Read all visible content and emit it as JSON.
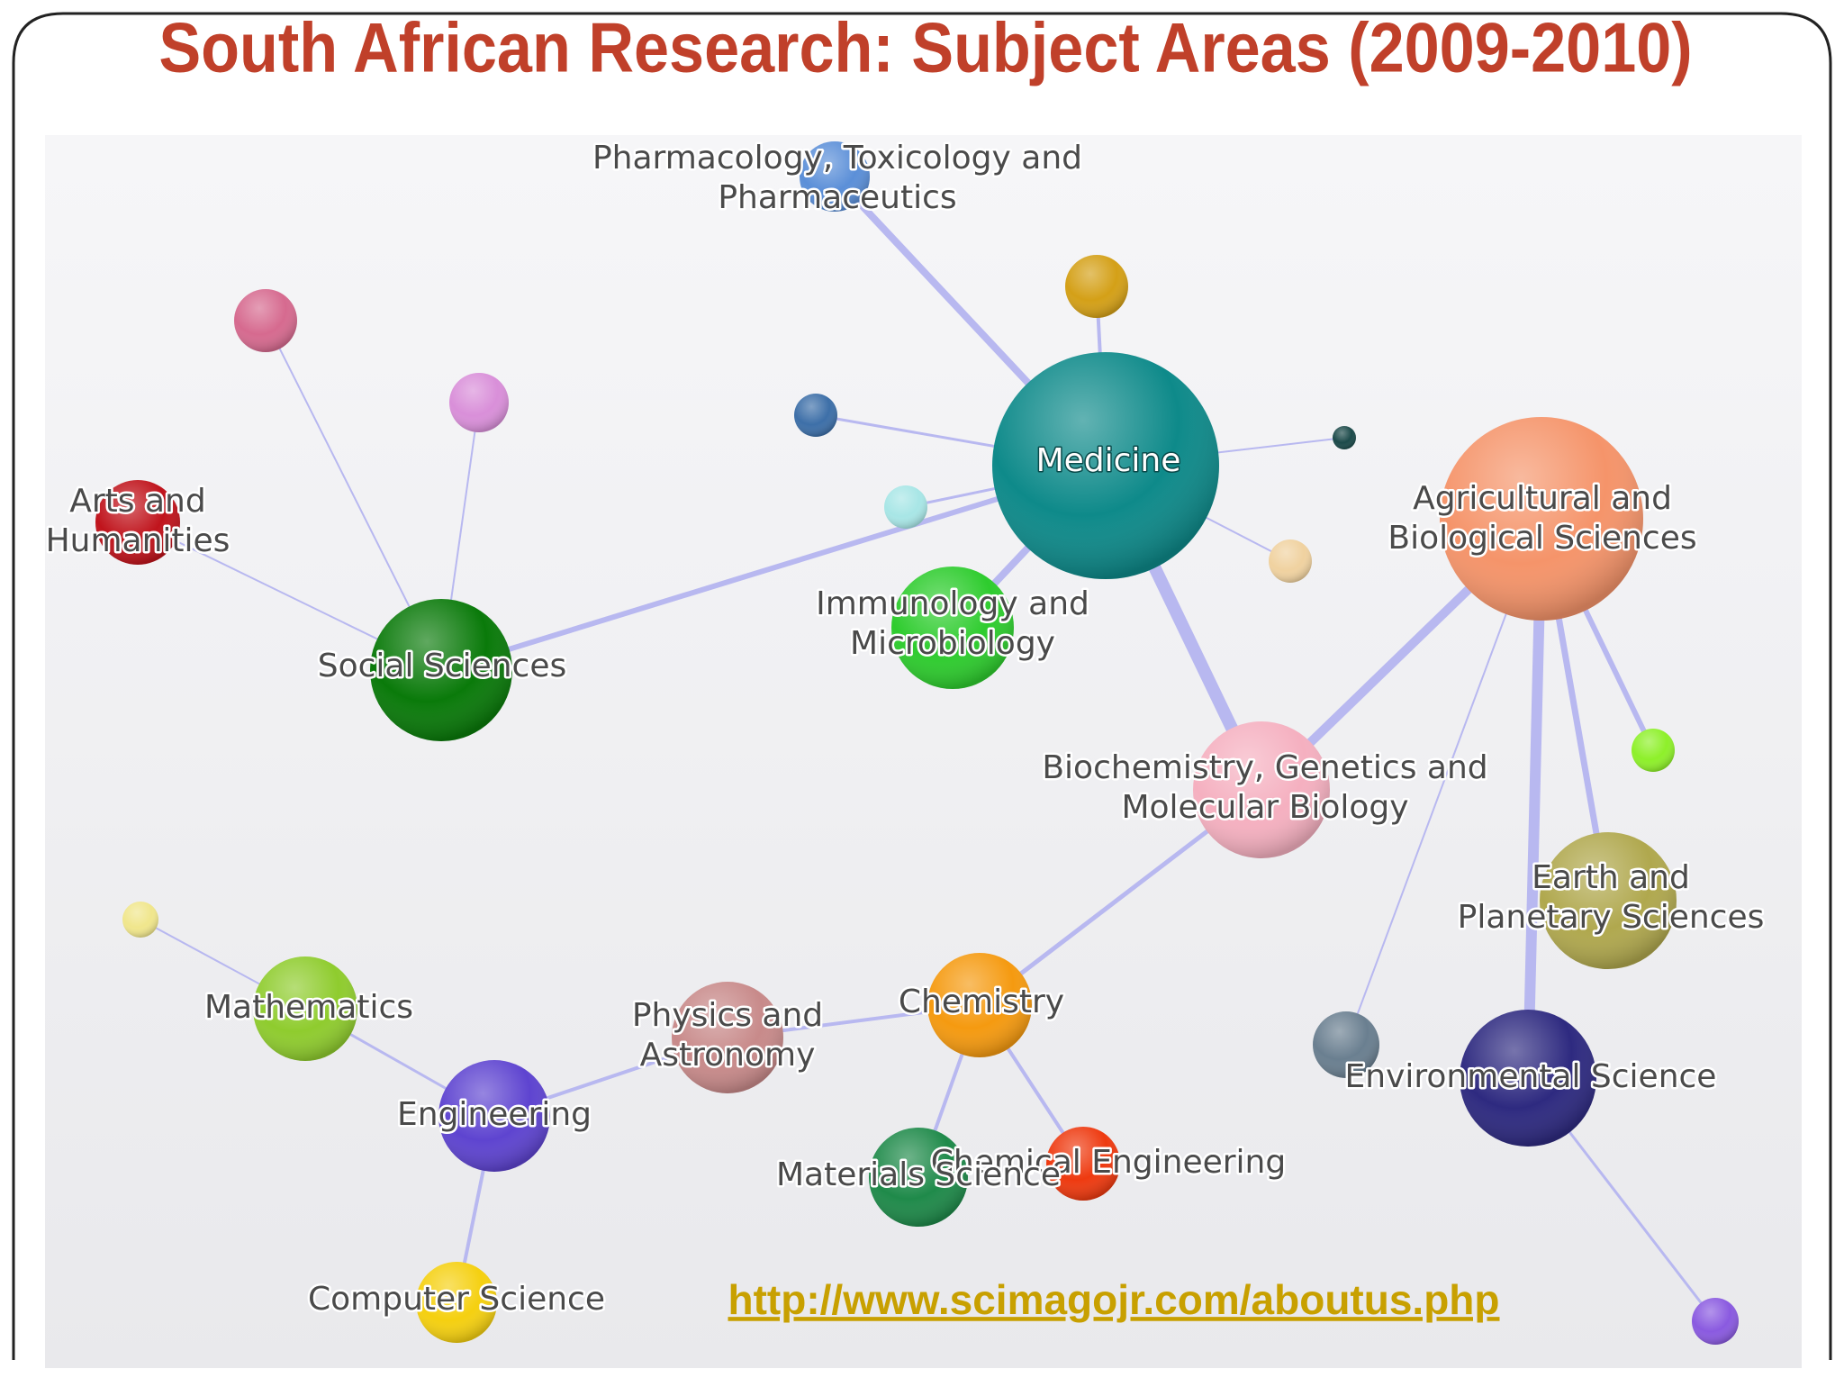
{
  "header": {
    "title": "South African Research: Subject Areas (2009-2010)"
  },
  "nodes": [
    {
      "lines": [
        "Pharmacology, Toxicology and",
        "Pharmaceutics"
      ]
    },
    {
      "lines": [
        "Medicine"
      ]
    },
    {
      "lines": [
        "Arts and",
        "Humanities"
      ]
    },
    {
      "lines": [
        "Agricultural and",
        "Biological Sciences"
      ]
    },
    {
      "lines": [
        "Immunology and",
        "Microbiology"
      ]
    },
    {
      "lines": [
        "Social Sciences"
      ]
    },
    {
      "lines": [
        "Biochemistry, Genetics and",
        "Molecular Biology"
      ]
    },
    {
      "lines": [
        "Earth and",
        "Planetary Sciences"
      ]
    },
    {
      "lines": [
        "Mathematics"
      ]
    },
    {
      "lines": [
        "Physics and",
        "Astronomy"
      ]
    },
    {
      "lines": [
        "Chemistry"
      ]
    },
    {
      "lines": [
        "Environmental Science"
      ]
    },
    {
      "lines": [
        "Engineering"
      ]
    },
    {
      "lines": [
        "Chemical Engineering"
      ]
    },
    {
      "lines": [
        "Materials Science"
      ]
    },
    {
      "lines": [
        "Computer Science"
      ]
    }
  ],
  "footer": {
    "link": "http://www.scimagojr.com/aboutus.php"
  }
}
